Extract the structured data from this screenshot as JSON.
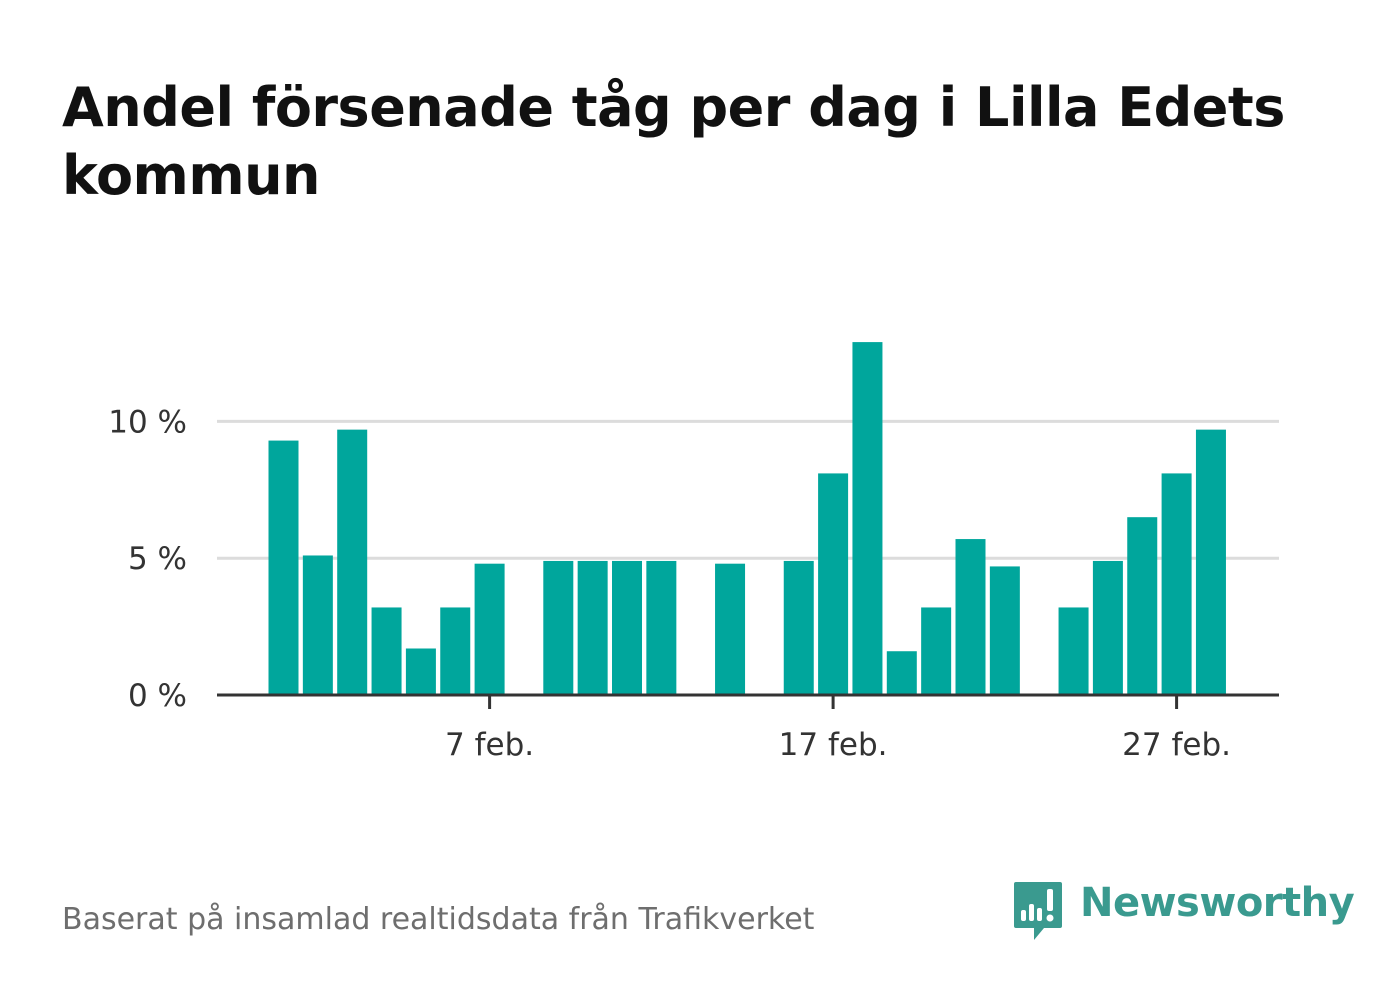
{
  "title": "Andel försenade tåg per dag i Lilla Edets kommun",
  "footer": "Baserat på insamlad realtidsdata från Trafikverket",
  "brand": {
    "name": "Newsworthy",
    "icon": "newsworthy-logo-icon",
    "color": "#3a9a8f"
  },
  "chart_data": {
    "type": "bar",
    "color": "#00a69c",
    "ylim": [
      0,
      14
    ],
    "yticks": [
      {
        "value": 0,
        "label": "0 %"
      },
      {
        "value": 5,
        "label": "5 %"
      },
      {
        "value": 10,
        "label": "10 %"
      }
    ],
    "xticks": [
      {
        "day": 7,
        "label": "7 feb."
      },
      {
        "day": 17,
        "label": "17 feb."
      },
      {
        "day": 27,
        "label": "27 feb."
      }
    ],
    "grid": true,
    "x": [
      1,
      2,
      3,
      4,
      5,
      6,
      7,
      8,
      9,
      10,
      11,
      12,
      13,
      14,
      15,
      16,
      17,
      18,
      19,
      20,
      21,
      22,
      23,
      24,
      25,
      26,
      27,
      28
    ],
    "values": [
      9.3,
      5.1,
      9.7,
      3.2,
      1.7,
      3.2,
      4.8,
      0,
      4.9,
      4.9,
      4.9,
      4.9,
      0,
      4.8,
      0,
      4.9,
      8.1,
      12.9,
      1.6,
      3.2,
      5.7,
      4.7,
      0,
      3.2,
      4.9,
      6.5,
      8.1,
      9.7
    ]
  }
}
